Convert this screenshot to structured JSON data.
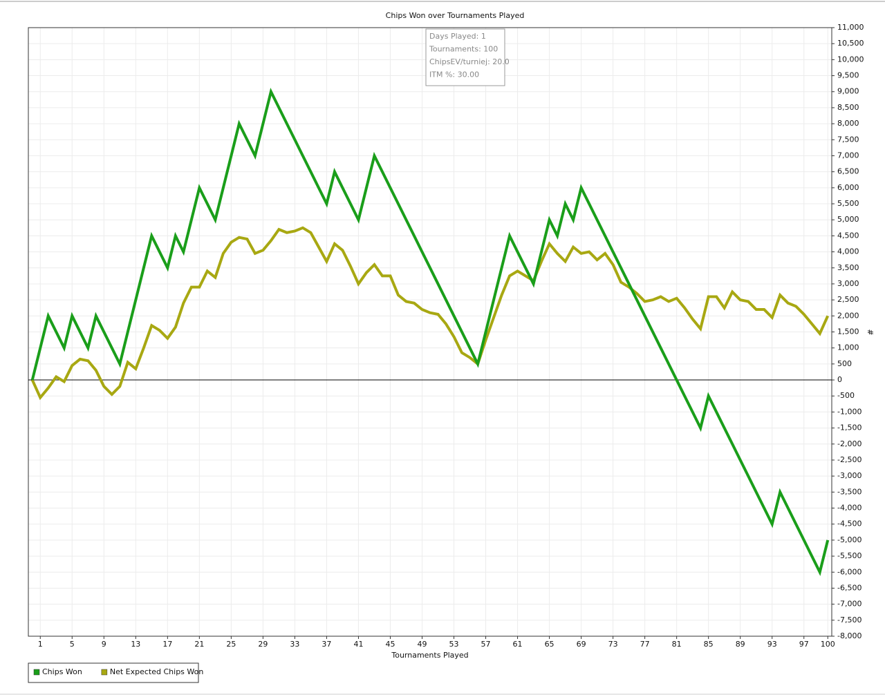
{
  "chart_data": {
    "type": "line",
    "title": "Chips Won over Tournaments Played",
    "x_label": "Tournaments Played",
    "y_label": "#",
    "x": [
      0,
      1,
      2,
      3,
      4,
      5,
      6,
      7,
      8,
      9,
      10,
      11,
      12,
      13,
      14,
      15,
      16,
      17,
      18,
      19,
      20,
      21,
      22,
      23,
      24,
      25,
      26,
      27,
      28,
      29,
      30,
      31,
      32,
      33,
      34,
      35,
      36,
      37,
      38,
      39,
      40,
      41,
      42,
      43,
      44,
      45,
      46,
      47,
      48,
      49,
      50,
      51,
      52,
      53,
      54,
      55,
      56,
      57,
      58,
      59,
      60,
      61,
      62,
      63,
      64,
      65,
      66,
      67,
      68,
      69,
      70,
      71,
      72,
      73,
      74,
      75,
      76,
      77,
      78,
      79,
      80,
      81,
      82,
      83,
      84,
      85,
      86,
      87,
      88,
      89,
      90,
      91,
      92,
      93,
      94,
      95,
      96,
      97,
      98,
      99,
      100
    ],
    "series": [
      {
        "name": "Chips Won",
        "color": "#1a9e1a",
        "values": [
          0,
          1000,
          2000,
          1500,
          1000,
          2000,
          1500,
          1000,
          2000,
          1500,
          1000,
          500,
          1500,
          2500,
          3500,
          4500,
          4000,
          3500,
          4500,
          4000,
          5000,
          6000,
          5500,
          5000,
          6000,
          7000,
          8000,
          7500,
          7000,
          8000,
          9000,
          8500,
          8000,
          7500,
          7000,
          6500,
          6000,
          5500,
          6500,
          6000,
          5500,
          5000,
          6000,
          7000,
          6500,
          6000,
          5500,
          5000,
          4500,
          4000,
          3500,
          3000,
          2500,
          2000,
          1500,
          1000,
          500,
          1500,
          2500,
          3500,
          4500,
          4000,
          3500,
          3000,
          4000,
          5000,
          4500,
          5500,
          5000,
          6000,
          5500,
          5000,
          4500,
          4000,
          3500,
          3000,
          2500,
          2000,
          1500,
          1000,
          500,
          0,
          -500,
          -1000,
          -1500,
          -500,
          -1000,
          -1500,
          -2000,
          -2500,
          -3000,
          -3500,
          -4000,
          -4500,
          -3500,
          -4000,
          -4500,
          -5000,
          -5500,
          -6000,
          -5000
        ]
      },
      {
        "name": "Net Expected Chips Won",
        "color": "#a8a812",
        "values": [
          0,
          -550,
          -250,
          100,
          -50,
          450,
          650,
          600,
          300,
          -200,
          -450,
          -200,
          550,
          350,
          1000,
          1700,
          1550,
          1300,
          1650,
          2400,
          2900,
          2900,
          3400,
          3200,
          3950,
          4300,
          4450,
          4400,
          3950,
          4050,
          4350,
          4700,
          4600,
          4650,
          4750,
          4600,
          4150,
          3700,
          4250,
          4050,
          3550,
          3000,
          3350,
          3600,
          3250,
          3250,
          2650,
          2450,
          2400,
          2200,
          2100,
          2050,
          1750,
          1350,
          850,
          700,
          500,
          1250,
          1950,
          2650,
          3250,
          3400,
          3250,
          3100,
          3700,
          4250,
          3950,
          3700,
          4150,
          3950,
          4000,
          3750,
          3950,
          3600,
          3050,
          2900,
          2700,
          2450,
          2500,
          2600,
          2450,
          2550,
          2250,
          1900,
          1600,
          2600,
          2600,
          2250,
          2750,
          2500,
          2450,
          2200,
          2200,
          1950,
          2650,
          2400,
          2300,
          2050,
          1750,
          1450,
          2000
        ]
      }
    ],
    "xlim": [
      -0.5,
      100.5
    ],
    "xticks": [
      1,
      5,
      9,
      13,
      17,
      21,
      25,
      29,
      33,
      37,
      41,
      45,
      49,
      53,
      57,
      61,
      65,
      69,
      73,
      77,
      81,
      85,
      89,
      93,
      97,
      100
    ],
    "ylim": [
      -8000,
      11000
    ],
    "yticks": [
      {
        "value": -8000,
        "label": "-8,000"
      },
      {
        "value": -7500,
        "label": "-7,500"
      },
      {
        "value": -7000,
        "label": "-7,000"
      },
      {
        "value": -6500,
        "label": "-6,500"
      },
      {
        "value": -6000,
        "label": "-6,000"
      },
      {
        "value": -5500,
        "label": "-5,500"
      },
      {
        "value": -5000,
        "label": "-5,000"
      },
      {
        "value": -4500,
        "label": "-4,500"
      },
      {
        "value": -4000,
        "label": "-4,000"
      },
      {
        "value": -3500,
        "label": "-3,500"
      },
      {
        "value": -3000,
        "label": "-3,000"
      },
      {
        "value": -2500,
        "label": "-2,500"
      },
      {
        "value": -2000,
        "label": "-2,000"
      },
      {
        "value": -1500,
        "label": "-1,500"
      },
      {
        "value": -1000,
        "label": "-1,000"
      },
      -500,
      0,
      500,
      {
        "value": 1000,
        "label": "1,000"
      },
      {
        "value": 1500,
        "label": "1,500"
      },
      {
        "value": 2000,
        "label": "2,000"
      },
      {
        "value": 2500,
        "label": "2,500"
      },
      {
        "value": 3000,
        "label": "3,000"
      },
      {
        "value": 3500,
        "label": "3,500"
      },
      {
        "value": 4000,
        "label": "4,000"
      },
      {
        "value": 4500,
        "label": "4,500"
      },
      {
        "value": 5000,
        "label": "5,000"
      },
      {
        "value": 5500,
        "label": "5,500"
      },
      {
        "value": 6000,
        "label": "6,000"
      },
      {
        "value": 6500,
        "label": "6,500"
      },
      {
        "value": 7000,
        "label": "7,000"
      },
      {
        "value": 7500,
        "label": "7,500"
      },
      {
        "value": 8000,
        "label": "8,000"
      },
      {
        "value": 8500,
        "label": "8,500"
      },
      {
        "value": 9000,
        "label": "9,000"
      },
      {
        "value": 9500,
        "label": "9,500"
      },
      {
        "value": 10000,
        "label": "10,000"
      },
      {
        "value": 10500,
        "label": "10,500"
      },
      {
        "value": 11000,
        "label": "11,000"
      }
    ],
    "grid": true,
    "tooltip": [
      "Days Played: 1",
      "Tournaments: 100",
      "ChipsEV/turniej: 20.0",
      "ITM %: 30.00"
    ]
  }
}
